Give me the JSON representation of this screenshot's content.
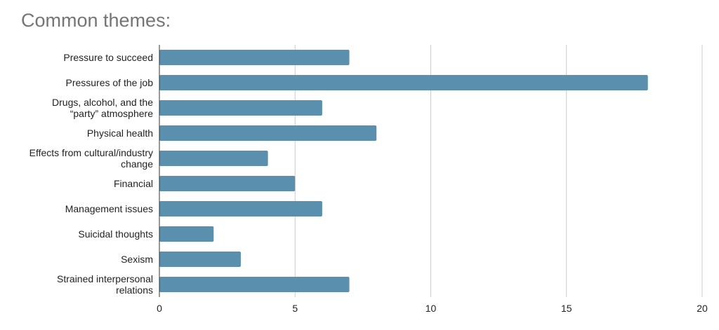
{
  "chart_data": {
    "type": "bar",
    "orientation": "horizontal",
    "title": "Common themes:",
    "categories": [
      [
        "Pressure to succeed"
      ],
      [
        "Pressures of the job"
      ],
      [
        "Drugs, alcohol, and the",
        "“party” atmosphere"
      ],
      [
        "Physical health"
      ],
      [
        "Effects from cultural/industry",
        "change"
      ],
      [
        "Financial"
      ],
      [
        "Management issues"
      ],
      [
        "Suicidal thoughts"
      ],
      [
        "Sexism"
      ],
      [
        "Strained interpersonal",
        "relations"
      ]
    ],
    "values": [
      7,
      18,
      6,
      8,
      4,
      5,
      6,
      2,
      3,
      7
    ],
    "xlim": [
      0,
      20
    ],
    "xticks": [
      "0",
      "5",
      "10",
      "15",
      "20"
    ],
    "grid": true,
    "bar_color": "#5a8fae",
    "grid_color": "#cccccc"
  }
}
